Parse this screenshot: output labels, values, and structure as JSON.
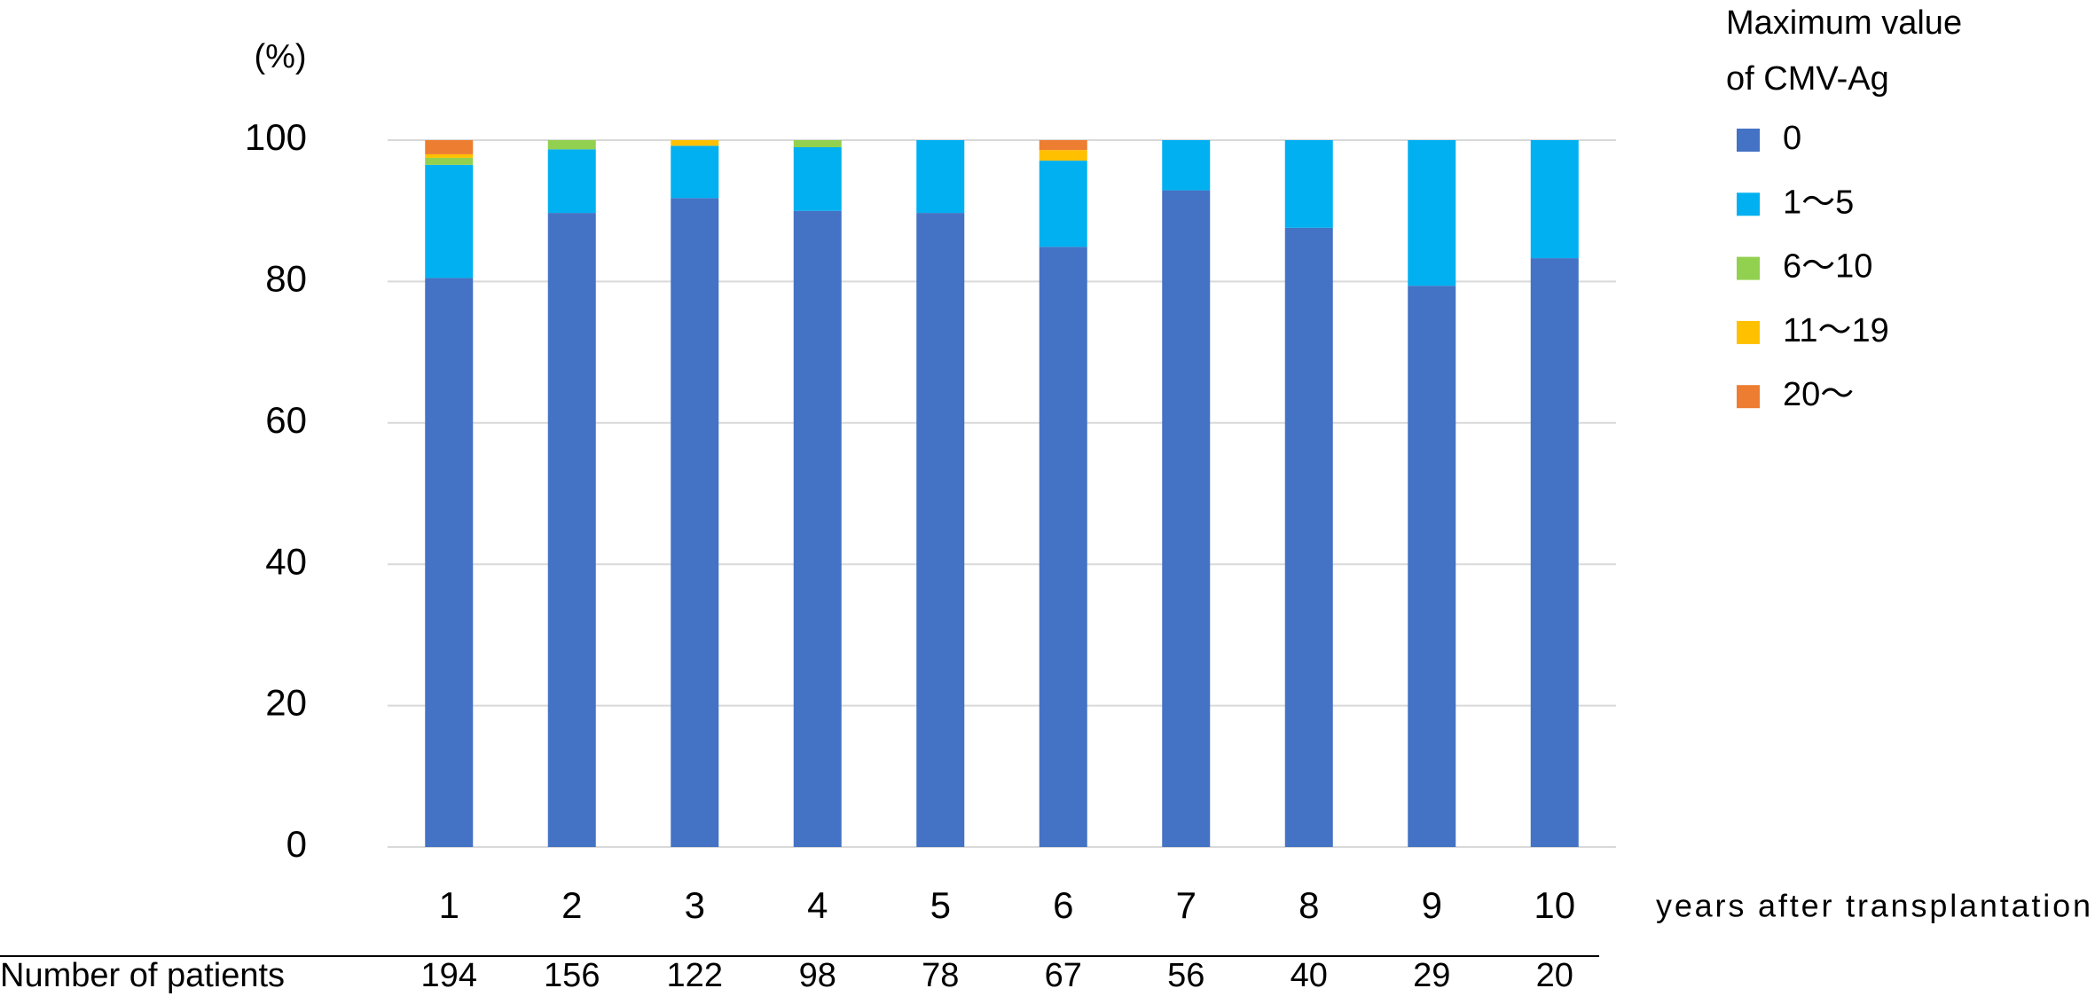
{
  "chart_data": {
    "type": "stacked_bar",
    "y_unit": "(%)",
    "x_label": "years after transplantation",
    "legend_title": [
      "Maximum value",
      "of CMV-Ag"
    ],
    "categories": [
      "1",
      "2",
      "3",
      "4",
      "5",
      "6",
      "7",
      "8",
      "9",
      "10"
    ],
    "series": [
      {
        "name": "0",
        "color": "#4472c4",
        "values": [
          80.5,
          89.7,
          91.8,
          90,
          89.7,
          84.9,
          92.9,
          87.6,
          79.4,
          83.3
        ]
      },
      {
        "name": "1～5",
        "color": "#00b0f0",
        "values": [
          16,
          9,
          7.4,
          9,
          10.3,
          12.2,
          7.1,
          12.4,
          20.6,
          16.7
        ]
      },
      {
        "name": "6～10",
        "color": "#92d050",
        "values": [
          1,
          1.3,
          0,
          1,
          0,
          0,
          0,
          0,
          0,
          0
        ]
      },
      {
        "name": "11～19",
        "color": "#ffc000",
        "values": [
          0.5,
          0,
          0.8,
          0,
          0,
          1.5,
          0,
          0,
          0,
          0
        ]
      },
      {
        "name": "20～",
        "color": "#ed7d31",
        "values": [
          2,
          0,
          0,
          0,
          0,
          1.4,
          0,
          0,
          0,
          0
        ]
      }
    ],
    "ylim": [
      0,
      100
    ],
    "yticks": [
      0,
      20,
      40,
      60,
      80,
      100
    ],
    "grid": true,
    "patients": {
      "label": "Number of patients",
      "values": [
        194,
        156,
        122,
        98,
        78,
        67,
        56,
        40,
        29,
        20
      ]
    }
  }
}
